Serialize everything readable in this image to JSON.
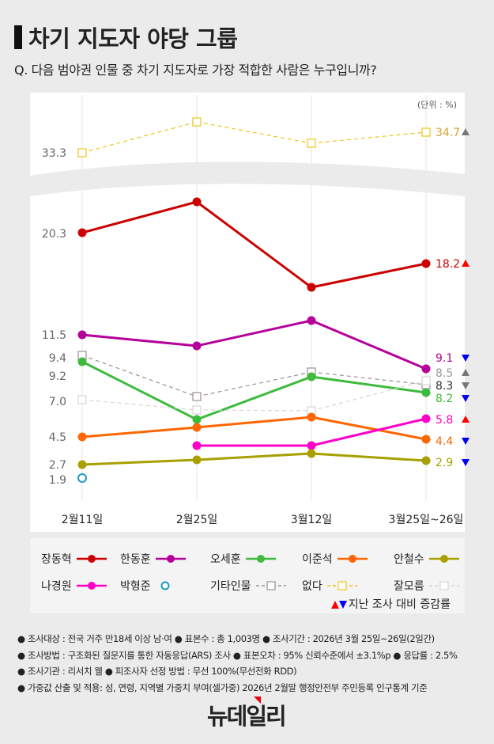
{
  "header": {
    "title": "차기 지도자 야당 그룹",
    "question": "Q. 다음 범야권 인물 중 차기 지도자로 가장 적합한 사람은 누구입니까?"
  },
  "chart_data": {
    "type": "line",
    "unit_label": "(단위 : %)",
    "categories": [
      "2월11일",
      "2월25일",
      "3월12일",
      "3월25일~26일"
    ],
    "axis_break": true,
    "grid": "vertical",
    "series": [
      {
        "name": "없다",
        "color": "#f0c419",
        "style": "dashed-square",
        "values": [
          33.3,
          36.5,
          34.0,
          34.7
        ],
        "labels": [
          "33.3",
          null,
          null,
          "34.7"
        ],
        "change": "up",
        "change_color": "#777777",
        "label_color": "#d4a334"
      },
      {
        "name": "장동혁",
        "color": "#cc0000",
        "style": "solid-dot",
        "values": [
          20.3,
          22.9,
          15.6,
          18.2
        ],
        "labels": [
          "20.3",
          null,
          null,
          "18.2"
        ],
        "change": "up",
        "change_color": "#ff0000",
        "label_color": "#cc0000"
      },
      {
        "name": "한동훈",
        "color": "#b5009a",
        "style": "solid-dot",
        "values": [
          11.5,
          10.8,
          12.7,
          9.1
        ],
        "labels": [
          "11.5",
          null,
          null,
          "9.1"
        ],
        "change": "down",
        "change_color": "#0000ff",
        "label_color": "#b5009a"
      },
      {
        "name": "기타인물",
        "color": "#9a8f98",
        "style": "dashed-square",
        "values": [
          9.4,
          7.0,
          9.0,
          8.3
        ],
        "labels": [
          "9.4",
          null,
          null,
          "8.3"
        ],
        "change": "down",
        "change_color": "#777777",
        "label_color": "#333333"
      },
      {
        "name": "오세훈",
        "color": "#3dbb3d",
        "style": "solid-dot",
        "values": [
          9.2,
          5.5,
          8.8,
          8.2
        ],
        "labels": [
          "9.2",
          null,
          null,
          "8.2"
        ],
        "change": "down",
        "change_color": "#0000ff",
        "label_color": "#3dbb3d"
      },
      {
        "name": "잘모름",
        "color": "#d6d6d6",
        "style": "dashed-square",
        "values": [
          7.0,
          6.2,
          6.2,
          8.5
        ],
        "labels": [
          "7.0",
          null,
          null,
          "8.5"
        ],
        "change": "up",
        "change_color": "#777777",
        "label_color": "#999999"
      },
      {
        "name": "이준석",
        "color": "#ff6600",
        "style": "solid-dot",
        "values": [
          4.5,
          5.3,
          6.0,
          4.4
        ],
        "labels": [
          "4.5",
          null,
          null,
          "4.4"
        ],
        "change": "down",
        "change_color": "#0000ff",
        "label_color": "#ff6600"
      },
      {
        "name": "나경원",
        "color": "#ff00c8",
        "style": "solid-dot",
        "values": [
          null,
          3.8,
          3.8,
          5.8
        ],
        "labels": [
          null,
          null,
          null,
          "5.8"
        ],
        "change": "up",
        "change_color": "#ff0000",
        "label_color": "#ff00c8"
      },
      {
        "name": "안철수",
        "color": "#a8a000",
        "style": "solid-dot",
        "values": [
          2.7,
          3.1,
          3.5,
          2.9
        ],
        "labels": [
          "2.7",
          null,
          null,
          "2.9"
        ],
        "change": "down",
        "change_color": "#0000ff",
        "label_color": "#a8a000"
      },
      {
        "name": "박형준",
        "color": "#1a9bc4",
        "style": "ring",
        "values": [
          1.9,
          null,
          null,
          null
        ],
        "labels": [
          "1.9",
          null,
          null,
          null
        ],
        "change": null,
        "label_color": "#666666"
      }
    ]
  },
  "legend": {
    "items": [
      {
        "name": "장동혁",
        "color": "#cc0000",
        "style": "solid-dot"
      },
      {
        "name": "한동훈",
        "color": "#b5009a",
        "style": "solid-dot"
      },
      {
        "name": "오세훈",
        "color": "#3dbb3d",
        "style": "solid-dot"
      },
      {
        "name": "이준석",
        "color": "#ff6600",
        "style": "solid-dot"
      },
      {
        "name": "안철수",
        "color": "#a8a000",
        "style": "solid-dot"
      },
      {
        "name": "나경원",
        "color": "#ff00c8",
        "style": "solid-dot"
      },
      {
        "name": "박형준",
        "color": "#1a9bc4",
        "style": "ring"
      },
      {
        "name": "기타인물",
        "color": "#9a8f98",
        "style": "dashed-square"
      },
      {
        "name": "없다",
        "color": "#f0c419",
        "style": "dashed-square"
      },
      {
        "name": "잘모름",
        "color": "#d6d6d6",
        "style": "dashed-square"
      }
    ],
    "change_note": "지난 조사 대비 증감률"
  },
  "notes": [
    "조사대상 : 전국 거주 만18세 이상 남·여 ● 표본수 : 총 1,003명 ● 조사기간 : 2026년 3월 25일~26일(2일간)",
    "조사방법 : 구조화된 질문지를 통한 자동응답(ARS) 조사 ● 표본오차 : 95% 신뢰수준에서 ±3.1%p ● 응답률 : 2.5%",
    "조사기관 : 리서치 웰 ● 피조사자 선정 방법 : 무선 100%(무선전화 RDD)",
    "가중값 산출 및 적용: 성, 연령, 지역별 가중치 부여(셀가중) 2026년 2월말 행정안전부 주민등록 인구통계 기준"
  ],
  "logo": "뉴데일리"
}
